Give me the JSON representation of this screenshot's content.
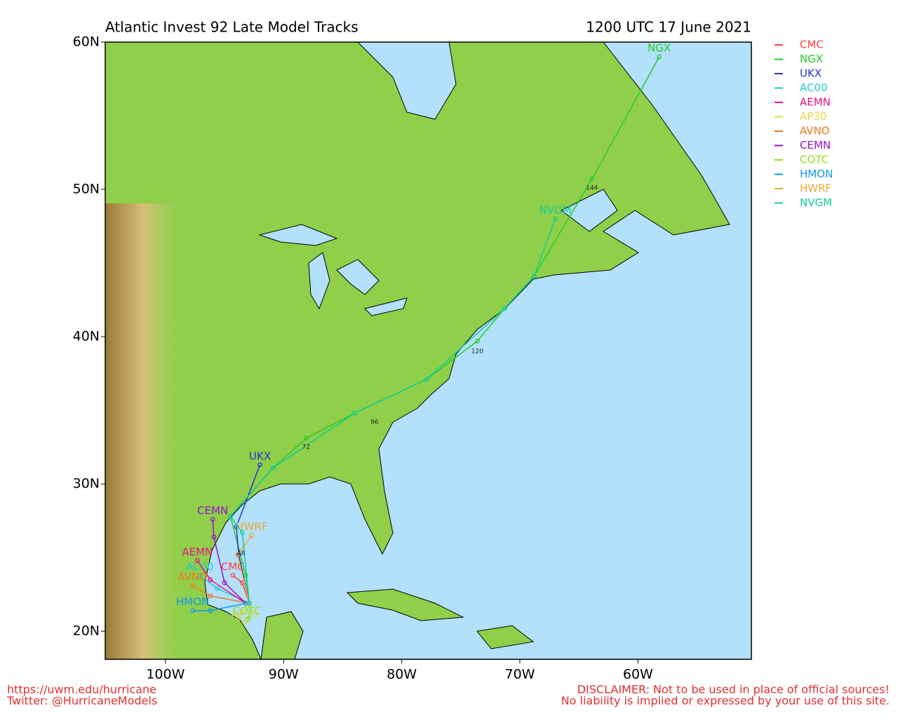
{
  "title": "Atlantic Invest 92 Late Model Tracks",
  "date": "1200 UTC 17 June 2021",
  "map": {
    "xlim": [
      -105.1,
      -50.4
    ],
    "ylim": [
      18.1,
      60
    ],
    "xticks": [
      {
        "value": -100,
        "label": "100W"
      },
      {
        "value": -90,
        "label": "90W"
      },
      {
        "value": -80,
        "label": "80W"
      },
      {
        "value": -70,
        "label": "70W"
      },
      {
        "value": -60,
        "label": "60W"
      }
    ],
    "yticks": [
      {
        "value": 20,
        "label": "20N"
      },
      {
        "value": 30,
        "label": "30N"
      },
      {
        "value": 40,
        "label": "40N"
      },
      {
        "value": 50,
        "label": "50N"
      },
      {
        "value": 60,
        "label": "60N"
      }
    ]
  },
  "models": [
    {
      "name": "CMC",
      "color": "#ff4040",
      "lon": [
        -92.9,
        -93.5,
        -94.3
      ],
      "lat": [
        21.9,
        23.3,
        23.8
      ]
    },
    {
      "name": "NGX",
      "color": "#22cc22",
      "lon": [
        -92.9,
        -93.2,
        -94.5,
        -90.9,
        -88.1,
        -84.0,
        -77.9,
        -73.6,
        -71.3,
        -68.8,
        -63.9,
        -58.2
      ],
      "lat": [
        21.9,
        23.8,
        27.8,
        31.1,
        33.1,
        34.8,
        37.1,
        39.7,
        41.9,
        44.1,
        50.7,
        59.0
      ]
    },
    {
      "name": "UKX",
      "color": "#2233cc",
      "lon": [
        -92.9,
        -93.8,
        -94.0,
        -92.0
      ],
      "lat": [
        21.9,
        25.2,
        27.1,
        31.3
      ]
    },
    {
      "name": "AC00",
      "color": "#22cccc",
      "lon": [
        -92.9,
        -95.6,
        -97.1
      ],
      "lat": [
        21.9,
        22.9,
        23.8
      ]
    },
    {
      "name": "AEMN",
      "color": "#ee1188",
      "lon": [
        -93.2,
        -96.2,
        -97.3
      ],
      "lat": [
        21.9,
        23.5,
        24.8
      ]
    },
    {
      "name": "AP30",
      "color": "#dddd44",
      "lon": [
        -92.9,
        -93.8,
        -93.3
      ],
      "lat": [
        21.9,
        20.9,
        20.6
      ]
    },
    {
      "name": "AVNO",
      "color": "#ee7722",
      "lon": [
        -92.9,
        -96.2,
        -97.7
      ],
      "lat": [
        21.9,
        22.4,
        23.1
      ]
    },
    {
      "name": "CEMN",
      "color": "#9911cc",
      "lon": [
        -93.2,
        -95.0,
        -95.9,
        -96.0
      ],
      "lat": [
        21.9,
        23.3,
        26.4,
        27.6
      ]
    },
    {
      "name": "COTC",
      "color": "#99dd22",
      "lon": [
        -92.9,
        -92.9,
        -93.1
      ],
      "lat": [
        21.9,
        20.9,
        20.8
      ]
    },
    {
      "name": "HMON",
      "color": "#1199ee",
      "lon": [
        -93.2,
        -96.2,
        -97.7
      ],
      "lat": [
        21.9,
        21.4,
        21.4
      ]
    },
    {
      "name": "HWRF",
      "color": "#eeaa33",
      "lon": [
        -92.9,
        -93.9,
        -92.7
      ],
      "lat": [
        21.9,
        25.2,
        26.5
      ]
    },
    {
      "name": "NVGM",
      "color": "#11cc99",
      "lon": [
        -92.9,
        -93.5,
        -94.5,
        -90.9,
        -84.0,
        -77.9,
        -71.3,
        -68.8,
        -67.0
      ],
      "lat": [
        21.9,
        26.7,
        27.8,
        31.1,
        34.8,
        37.1,
        41.9,
        44.1,
        48.0
      ]
    }
  ],
  "hour_labels": [
    {
      "label": 144,
      "lon": -63.9,
      "lat": 50.1
    },
    {
      "label": 120,
      "lon": -73.6,
      "lat": 39.0
    },
    {
      "label": 96,
      "lon": -82.3,
      "lat": 34.2
    },
    {
      "label": 72,
      "lon": -88.1,
      "lat": 32.5
    },
    {
      "label": 48,
      "lon": -93.6,
      "lat": 25.3
    }
  ],
  "footer": {
    "left": [
      "https://uwm.edu/hurricane",
      "Twitter: @HurricaneModels"
    ],
    "right": [
      "DISCLAIMER: Not to be used in place of official sources!",
      "No liability is implied or expressed by your use of this site."
    ]
  }
}
